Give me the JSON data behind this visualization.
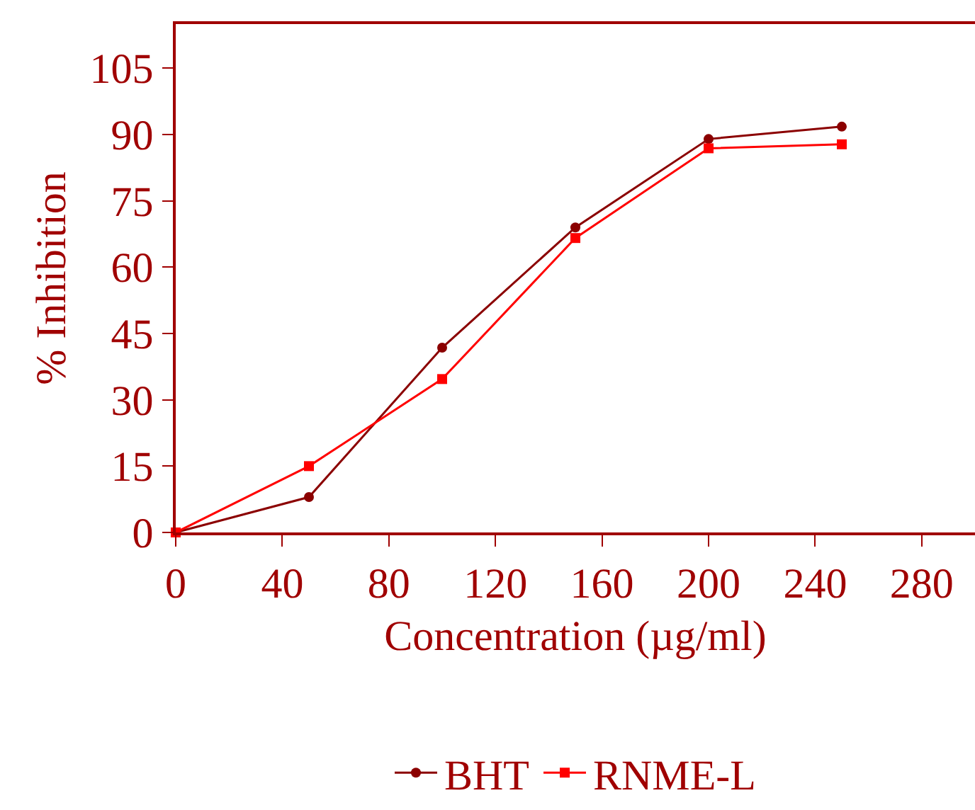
{
  "chart_data": {
    "type": "line",
    "xlabel": "Concentration (µg/ml)",
    "ylabel": "% Inhibition",
    "x": [
      0,
      50,
      100,
      150,
      200,
      250
    ],
    "series": [
      {
        "name": "BHT",
        "color": "#8b0000",
        "marker": "circle",
        "values": [
          0,
          8,
          41.8,
          69,
          89,
          91.8
        ]
      },
      {
        "name": "RNME-L",
        "color": "#ff0000",
        "marker": "square",
        "values": [
          0,
          15,
          34.7,
          66.6,
          86.9,
          87.8
        ]
      }
    ],
    "xlim": [
      0,
      300
    ],
    "xticks": [
      0,
      40,
      80,
      120,
      160,
      200,
      240,
      280
    ],
    "ylim": [
      0,
      115
    ],
    "yticks": [
      0,
      15,
      30,
      45,
      60,
      75,
      90,
      105
    ],
    "legend": "bottom",
    "line_style": "solid"
  }
}
